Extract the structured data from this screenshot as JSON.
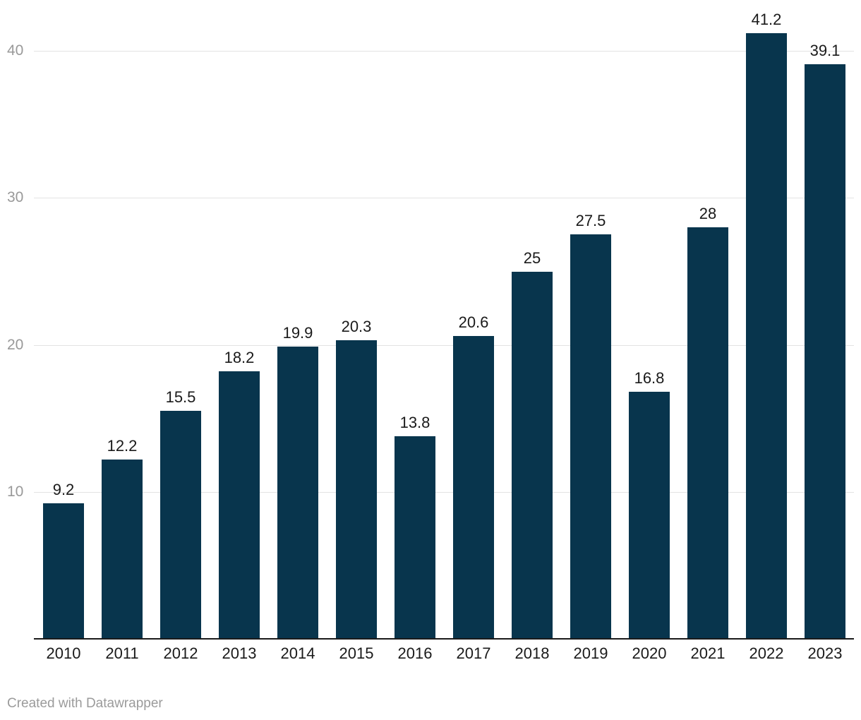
{
  "chart_data": {
    "type": "bar",
    "categories": [
      "2010",
      "2011",
      "2012",
      "2013",
      "2014",
      "2015",
      "2016",
      "2017",
      "2018",
      "2019",
      "2020",
      "2021",
      "2022",
      "2023"
    ],
    "values": [
      9.2,
      12.2,
      15.5,
      18.2,
      19.9,
      20.3,
      13.8,
      20.6,
      25,
      27.5,
      16.8,
      28,
      41.2,
      39.1
    ],
    "value_labels": [
      "9.2",
      "12.2",
      "15.5",
      "18.2",
      "19.9",
      "20.3",
      "13.8",
      "20.6",
      "25",
      "27.5",
      "16.8",
      "28",
      "41.2",
      "39.1"
    ],
    "title": "",
    "xlabel": "",
    "ylabel": "",
    "ylim": [
      0,
      43.5
    ],
    "yticks": [
      10,
      20,
      30,
      40
    ],
    "grid": true,
    "legend": false,
    "colors": {
      "bar": "#08354d",
      "value_label": "#1a1a1a",
      "x_tick_label": "#1a1a1a",
      "y_tick_label": "#999999",
      "gridline": "#e3e3e3",
      "axis_line": "#1a1a1a",
      "background": "#ffffff"
    }
  },
  "footer": {
    "credit": "Created with Datawrapper"
  }
}
